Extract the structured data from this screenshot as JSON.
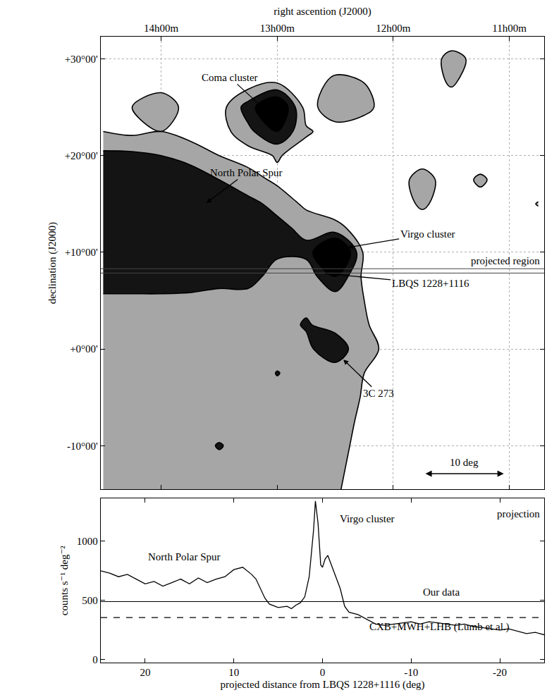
{
  "chart_data": [
    {
      "type": "contour",
      "xlabel": "right ascention (J2000)",
      "ylabel": "declination (J2000)",
      "x": [
        10.75,
        11,
        11.25,
        11.5,
        11.75,
        12,
        12.25,
        12.5,
        12.75,
        13,
        13.25,
        13.5,
        13.75,
        14,
        14.25,
        14.5
      ],
      "y": [
        -15,
        -12.5,
        -10,
        -7.5,
        -5,
        -2.5,
        0,
        2.5,
        5,
        7.5,
        10,
        12.5,
        15,
        17.5,
        20,
        22.5,
        25,
        27.5,
        30,
        32.5
      ],
      "cells": [
        [
          300,
          300,
          300,
          300,
          300,
          300,
          350,
          410,
          430,
          450,
          460,
          470,
          480,
          450,
          470,
          460
        ],
        [
          300,
          300,
          300,
          300,
          300,
          300,
          360,
          420,
          440,
          450,
          470,
          500,
          460,
          470,
          450,
          480
        ],
        [
          300,
          300,
          300,
          300,
          300,
          300,
          370,
          430,
          460,
          500,
          480,
          620,
          470,
          440,
          460,
          470
        ],
        [
          300,
          300,
          300,
          300,
          300,
          300,
          380,
          440,
          480,
          540,
          500,
          470,
          450,
          480,
          440,
          460
        ],
        [
          300,
          300,
          300,
          300,
          300,
          300,
          390,
          460,
          470,
          520,
          490,
          460,
          430,
          450,
          470,
          440
        ],
        [
          300,
          300,
          300,
          300,
          300,
          300,
          400,
          480,
          500,
          610,
          450,
          480,
          440,
          460,
          430,
          450
        ],
        [
          300,
          300,
          300,
          300,
          300,
          380,
          420,
          750,
          550,
          500,
          460,
          450,
          470,
          430,
          460,
          440
        ],
        [
          300,
          300,
          300,
          300,
          300,
          300,
          420,
          520,
          620,
          520,
          450,
          470,
          440,
          450,
          460,
          430
        ],
        [
          300,
          300,
          300,
          300,
          300,
          300,
          400,
          480,
          550,
          500,
          480,
          500,
          550,
          560,
          560,
          560
        ],
        [
          300,
          300,
          300,
          300,
          300,
          300,
          350,
          800,
          480,
          470,
          720,
          700,
          700,
          700,
          700,
          700
        ],
        [
          300,
          300,
          300,
          300,
          300,
          300,
          350,
          1300,
          650,
          650,
          720,
          720,
          720,
          720,
          720,
          720
        ],
        [
          300,
          300,
          300,
          300,
          300,
          300,
          320,
          450,
          550,
          650,
          680,
          700,
          720,
          700,
          720,
          730
        ],
        [
          410,
          300,
          330,
          300,
          430,
          300,
          300,
          300,
          350,
          550,
          650,
          700,
          700,
          720,
          700,
          720
        ],
        [
          300,
          300,
          430,
          300,
          480,
          300,
          300,
          300,
          300,
          350,
          500,
          600,
          680,
          700,
          700,
          700
        ],
        [
          300,
          300,
          300,
          300,
          300,
          300,
          300,
          300,
          300,
          420,
          300,
          400,
          550,
          600,
          650,
          650
        ],
        [
          300,
          300,
          300,
          300,
          300,
          300,
          300,
          300,
          430,
          800,
          550,
          300,
          300,
          400,
          350,
          400
        ],
        [
          300,
          300,
          300,
          300,
          300,
          300,
          450,
          550,
          300,
          1100,
          700,
          300,
          300,
          550,
          400,
          300
        ],
        [
          300,
          300,
          300,
          420,
          300,
          300,
          400,
          450,
          300,
          400,
          300,
          300,
          300,
          300,
          300,
          300
        ],
        [
          300,
          300,
          350,
          450,
          300,
          300,
          300,
          300,
          300,
          300,
          300,
          300,
          300,
          300,
          300,
          300
        ],
        [
          300,
          300,
          300,
          300,
          300,
          300,
          300,
          300,
          300,
          300,
          300,
          300,
          300,
          300,
          300,
          300
        ]
      ],
      "zlim": [
        300,
        1300
      ],
      "contours": {
        "start": 400,
        "end": 800,
        "size": 200
      },
      "xlim": [
        14.52,
        10.7
      ],
      "xticks": [
        {
          "value": 14,
          "label": "14h00m"
        },
        {
          "value": 13,
          "label": "13h00m"
        },
        {
          "value": 12,
          "label": "12h00m"
        },
        {
          "value": 11,
          "label": "11h00m"
        }
      ],
      "ylim": [
        -14.5,
        32.3
      ],
      "yticks": [
        {
          "value": 30,
          "label": "+30°00'"
        },
        {
          "value": 20,
          "label": "+20°00'"
        },
        {
          "value": 10,
          "label": "+10°00'"
        },
        {
          "value": 0,
          "label": "+0°00'"
        },
        {
          "value": -10,
          "label": "-10°00'"
        }
      ],
      "grid": true,
      "annotations": [
        {
          "text": "Coma cluster",
          "x": 13.11,
          "y": 24.8
        },
        {
          "text": "North Polar Spur",
          "x": 13.61,
          "y": 15.1
        },
        {
          "text": "Virgo cluster",
          "x": 12.39,
          "y": 10.5
        },
        {
          "text": "LBQS 1228+1116",
          "x": 12.59,
          "y": 7.8
        },
        {
          "text": "3C 273",
          "x": 12.43,
          "y": -1.1
        }
      ],
      "projected_region": {
        "label": "projected region",
        "dec": [
          7.85,
          8.3
        ]
      },
      "scale_bar": {
        "label": "10 deg",
        "length": 10
      }
    },
    {
      "type": "line",
      "xlabel": "projected distance from LBQS 1228+1116 (deg)",
      "ylabel": "counts s⁻¹ deg⁻²",
      "x": [
        25,
        24,
        23,
        22,
        21,
        20,
        19,
        18,
        17,
        16,
        15,
        14,
        13,
        12,
        11,
        10,
        9,
        8,
        7.5,
        7,
        6.5,
        6,
        5,
        4,
        3.5,
        3,
        2.5,
        2,
        1.5,
        1,
        0.8,
        0.5,
        0.2,
        0,
        -0.3,
        -0.6,
        -1,
        -1.5,
        -2,
        -2.5,
        -3,
        -4,
        -5,
        -6,
        -7,
        -8,
        -9,
        -10,
        -11,
        -12,
        -13,
        -14,
        -15,
        -16,
        -17,
        -18,
        -19,
        -20,
        -21,
        -22,
        -23,
        -24,
        -25
      ],
      "values": [
        750,
        730,
        700,
        720,
        680,
        640,
        660,
        620,
        650,
        680,
        640,
        690,
        650,
        680,
        700,
        760,
        780,
        720,
        680,
        600,
        520,
        470,
        440,
        450,
        430,
        460,
        480,
        530,
        700,
        1100,
        1340,
        1150,
        800,
        780,
        850,
        880,
        800,
        700,
        600,
        450,
        400,
        380,
        340,
        300,
        290,
        300,
        310,
        320,
        300,
        320,
        310,
        300,
        290,
        300,
        280,
        270,
        260,
        250,
        260,
        240,
        220,
        230,
        210
      ],
      "xlim": [
        25,
        -25
      ],
      "xticks": [
        20,
        10,
        0,
        -10,
        -20
      ],
      "ylim": [
        -25,
        1360
      ],
      "yticks": [
        0,
        500,
        1000
      ],
      "grid": false,
      "hlines": [
        {
          "name": "Our data",
          "value": 490,
          "line_style": "solid"
        },
        {
          "name": "CXB+MWH+LHB (Lumb et al.)",
          "value": 355,
          "line_style": "dashed"
        }
      ],
      "annotations": [
        {
          "text": "North Polar Spur"
        },
        {
          "text": "Virgo cluster"
        },
        {
          "text": "projection"
        }
      ]
    }
  ]
}
